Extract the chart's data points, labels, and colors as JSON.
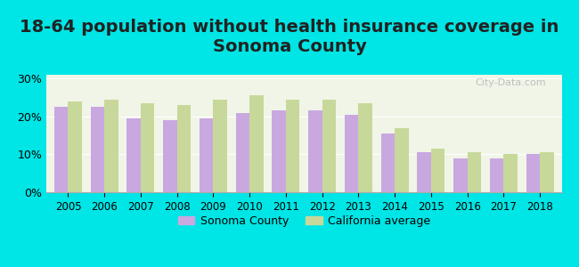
{
  "title": "18-64 population without health insurance coverage in Sonoma County",
  "years": [
    2005,
    2006,
    2007,
    2008,
    2009,
    2010,
    2011,
    2012,
    2013,
    2014,
    2015,
    2016,
    2017,
    2018
  ],
  "sonoma": [
    22.5,
    22.5,
    19.5,
    19.0,
    19.5,
    21.0,
    21.5,
    21.5,
    20.5,
    15.5,
    10.5,
    9.0,
    9.0,
    10.0
  ],
  "california": [
    24.0,
    24.5,
    23.5,
    23.0,
    24.5,
    25.5,
    24.5,
    24.5,
    23.5,
    17.0,
    11.5,
    10.5,
    10.0,
    10.5
  ],
  "sonoma_color": "#c9a8e0",
  "california_color": "#c8d89a",
  "background_outer": "#00e5e5",
  "background_inner": "#f0f5e8",
  "title_fontsize": 14,
  "ylim": [
    0,
    31
  ],
  "yticks": [
    0,
    10,
    20,
    30
  ],
  "ytick_labels": [
    "0%",
    "10%",
    "20%",
    "30%"
  ],
  "legend_sonoma": "Sonoma County",
  "legend_california": "California average",
  "watermark": "City-Data.com"
}
